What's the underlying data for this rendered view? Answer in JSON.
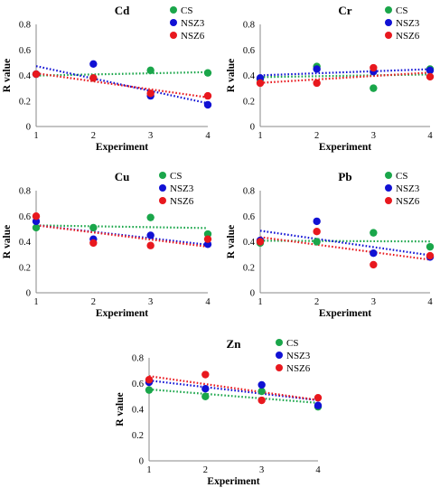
{
  "chart_data": [
    {
      "type": "scatter",
      "title": "Cd",
      "xlabel": "Experiment",
      "ylabel": "R value",
      "x": [
        1,
        2,
        3,
        4
      ],
      "xlim": [
        1,
        4
      ],
      "ylim": [
        0,
        0.8
      ],
      "yticks": [
        "0",
        "0.2",
        "0.4",
        "0.6",
        "0.8"
      ],
      "legend_position": "top-right",
      "trendlines": "linear dotted",
      "series": [
        {
          "name": "CS",
          "color": "#1aa64a",
          "values": [
            0.41,
            0.38,
            0.44,
            0.42
          ]
        },
        {
          "name": "NSZ3",
          "color": "#1111d4",
          "values": [
            0.41,
            0.49,
            0.24,
            0.17
          ]
        },
        {
          "name": "NSZ6",
          "color": "#e8181e",
          "values": [
            0.41,
            0.38,
            0.26,
            0.24
          ]
        }
      ]
    },
    {
      "type": "scatter",
      "title": "Cr",
      "xlabel": "Experiment",
      "ylabel": "R value",
      "x": [
        1,
        2,
        3,
        4
      ],
      "xlim": [
        1,
        4
      ],
      "ylim": [
        0,
        0.8
      ],
      "yticks": [
        "0",
        "0.2",
        "0.4",
        "0.6",
        "0.8"
      ],
      "legend_position": "top-right",
      "trendlines": "linear dotted",
      "series": [
        {
          "name": "CS",
          "color": "#1aa64a",
          "values": [
            0.37,
            0.47,
            0.3,
            0.45
          ]
        },
        {
          "name": "NSZ3",
          "color": "#1111d4",
          "values": [
            0.38,
            0.45,
            0.43,
            0.44
          ]
        },
        {
          "name": "NSZ6",
          "color": "#e8181e",
          "values": [
            0.34,
            0.34,
            0.46,
            0.39
          ]
        }
      ]
    },
    {
      "type": "scatter",
      "title": "Cu",
      "xlabel": "Experiment",
      "ylabel": "R value",
      "x": [
        1,
        2,
        3,
        4
      ],
      "xlim": [
        1,
        4
      ],
      "ylim": [
        0,
        0.8
      ],
      "yticks": [
        "0",
        "0.2",
        "0.4",
        "0.6",
        "0.8"
      ],
      "legend_position": "top-right",
      "trendlines": "linear dotted",
      "series": [
        {
          "name": "CS",
          "color": "#1aa64a",
          "values": [
            0.51,
            0.51,
            0.59,
            0.46
          ]
        },
        {
          "name": "NSZ3",
          "color": "#1111d4",
          "values": [
            0.56,
            0.42,
            0.45,
            0.38
          ]
        },
        {
          "name": "NSZ6",
          "color": "#e8181e",
          "values": [
            0.6,
            0.39,
            0.37,
            0.42
          ]
        }
      ]
    },
    {
      "type": "scatter",
      "title": "Pb",
      "xlabel": "Experiment",
      "ylabel": "R value",
      "x": [
        1,
        2,
        3,
        4
      ],
      "xlim": [
        1,
        4
      ],
      "ylim": [
        0,
        0.8
      ],
      "yticks": [
        "0",
        "0.2",
        "0.4",
        "0.6",
        "0.8"
      ],
      "legend_position": "top-right",
      "trendlines": "linear dotted",
      "series": [
        {
          "name": "CS",
          "color": "#1aa64a",
          "values": [
            0.39,
            0.4,
            0.47,
            0.36
          ]
        },
        {
          "name": "NSZ3",
          "color": "#1111d4",
          "values": [
            0.41,
            0.56,
            0.31,
            0.28
          ]
        },
        {
          "name": "NSZ6",
          "color": "#e8181e",
          "values": [
            0.4,
            0.48,
            0.22,
            0.29
          ]
        }
      ]
    },
    {
      "type": "scatter",
      "title": "Zn",
      "xlabel": "Experiment",
      "ylabel": "R value",
      "x": [
        1,
        2,
        3,
        4
      ],
      "xlim": [
        1,
        4
      ],
      "ylim": [
        0,
        0.8
      ],
      "yticks": [
        "0",
        "0.2",
        "0.4",
        "0.6",
        "0.8"
      ],
      "legend_position": "top-right",
      "trendlines": "linear dotted",
      "series": [
        {
          "name": "CS",
          "color": "#1aa64a",
          "values": [
            0.55,
            0.5,
            0.54,
            0.42
          ]
        },
        {
          "name": "NSZ3",
          "color": "#1111d4",
          "values": [
            0.61,
            0.56,
            0.59,
            0.43
          ]
        },
        {
          "name": "NSZ6",
          "color": "#e8181e",
          "values": [
            0.63,
            0.67,
            0.47,
            0.49
          ]
        }
      ]
    }
  ]
}
